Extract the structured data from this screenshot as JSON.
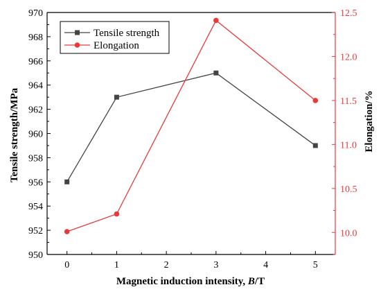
{
  "chart_data": {
    "type": "line",
    "x": [
      0,
      1,
      3,
      5
    ],
    "xlabel_prefix": "Magnetic induction intensity, ",
    "xlabel_var": "B",
    "xlabel_suffix": "/T",
    "xlim": [
      -0.4,
      5.4
    ],
    "xticks": [
      0,
      1,
      2,
      3,
      4,
      5
    ],
    "y_left": {
      "label": "Tensile strength/MPa",
      "lim": [
        950,
        970
      ],
      "ticks": [
        950,
        952,
        954,
        956,
        958,
        960,
        962,
        964,
        966,
        968,
        970
      ],
      "color": "#000000"
    },
    "y_right": {
      "label": "Elongation/%",
      "lim": [
        9.75,
        12.5
      ],
      "ticks": [
        10.0,
        10.5,
        11.0,
        11.5,
        12.0,
        12.5
      ],
      "color": "#e8393b"
    },
    "series": [
      {
        "name": "Tensile strength",
        "axis": "left",
        "marker": "square",
        "color": "#444444",
        "values": [
          956,
          963,
          965,
          959
        ]
      },
      {
        "name": "Elongation",
        "axis": "right",
        "marker": "circle",
        "color": "#e8393b",
        "values": [
          10.01,
          10.21,
          12.41,
          11.5
        ]
      }
    ],
    "legend_position": "top-left",
    "grid": false
  }
}
